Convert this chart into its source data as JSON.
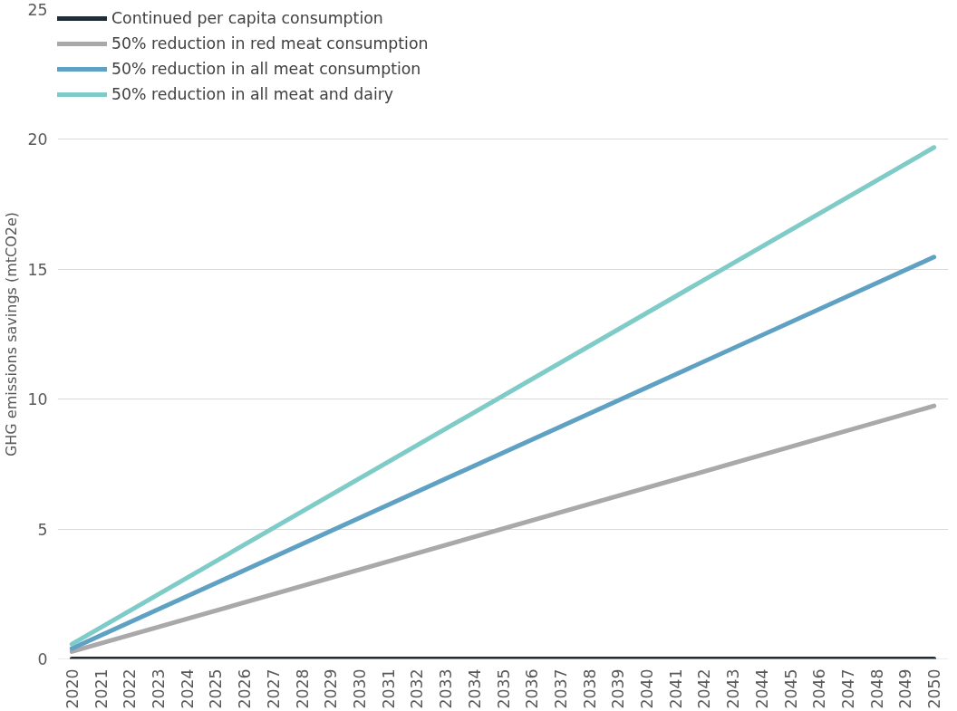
{
  "chart_data": {
    "type": "line",
    "ylabel": "GHG emissions savings (mtCO2e)",
    "x": [
      2020,
      2050
    ],
    "series": [
      {
        "name": "Continued per capita consumption",
        "color": "#1e2d38",
        "values": [
          0,
          0
        ]
      },
      {
        "name": "50% reduction in red meat consumption",
        "color": "#aaa8aa",
        "values": [
          0.28,
          9.74
        ]
      },
      {
        "name": "50% reduction in all meat consumption",
        "color": "#5ea1c3",
        "values": [
          0.4,
          15.47
        ]
      },
      {
        "name": "50% reduction in all meat and dairy",
        "color": "#7ecbc7",
        "values": [
          0.57,
          19.69
        ]
      }
    ],
    "xlim": [
      2019.5,
      2050.5
    ],
    "ylim": [
      0,
      25
    ],
    "xticks": [
      2020,
      2021,
      2022,
      2023,
      2024,
      2025,
      2026,
      2027,
      2028,
      2029,
      2030,
      2031,
      2032,
      2033,
      2034,
      2035,
      2036,
      2037,
      2038,
      2039,
      2040,
      2041,
      2042,
      2043,
      2044,
      2045,
      2046,
      2047,
      2048,
      2049,
      2050
    ],
    "yticks": [
      0,
      5,
      10,
      15,
      20,
      25
    ],
    "grid": "y",
    "legend": "top left"
  }
}
